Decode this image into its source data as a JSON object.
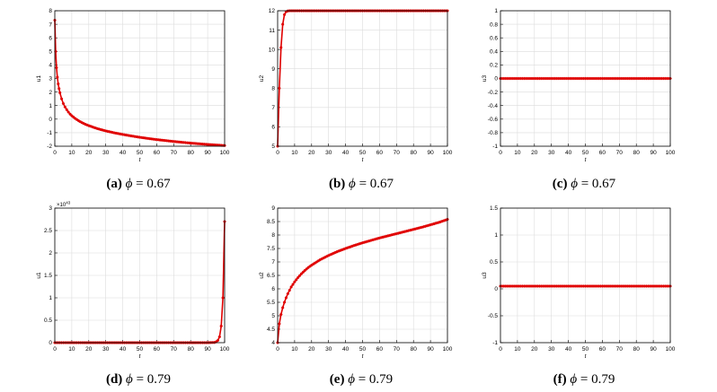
{
  "chart_data": [
    {
      "type": "line",
      "panel": "a",
      "caption": {
        "letter": "(a)",
        "symbol": "ϕ",
        "relation": "= 0.67"
      },
      "xlabel": "t",
      "ylabel": "u1",
      "xlim": [
        0,
        100
      ],
      "ylim": [
        -2,
        8
      ],
      "xticks": [
        0,
        10,
        20,
        30,
        40,
        50,
        60,
        70,
        80,
        90,
        100
      ],
      "yticks": [
        -2,
        -1,
        0,
        1,
        2,
        3,
        4,
        5,
        6,
        7,
        8
      ],
      "grid": true,
      "multiplier": "",
      "series": [
        {
          "color": "#e00000",
          "marker": "asterisk",
          "x": [
            0,
            0.5,
            1,
            1.5,
            2,
            2.5,
            3,
            4,
            5,
            6,
            7,
            8,
            9,
            10,
            12,
            14,
            16,
            18,
            20,
            25,
            30,
            35,
            40,
            45,
            50,
            55,
            60,
            65,
            70,
            75,
            80,
            85,
            90,
            95,
            100
          ],
          "y": [
            7.3,
            5.0,
            3.8,
            3.1,
            2.6,
            2.25,
            1.95,
            1.5,
            1.15,
            0.9,
            0.7,
            0.52,
            0.37,
            0.25,
            0.05,
            -0.12,
            -0.26,
            -0.38,
            -0.48,
            -0.7,
            -0.87,
            -1.01,
            -1.13,
            -1.24,
            -1.34,
            -1.43,
            -1.51,
            -1.58,
            -1.65,
            -1.71,
            -1.77,
            -1.82,
            -1.87,
            -1.91,
            -1.95
          ]
        }
      ]
    },
    {
      "type": "line",
      "panel": "b",
      "caption": {
        "letter": "(b)",
        "symbol": "ϕ",
        "relation": "= 0.67"
      },
      "xlabel": "t",
      "ylabel": "u2",
      "xlim": [
        0,
        100
      ],
      "ylim": [
        5,
        12
      ],
      "xticks": [
        0,
        10,
        20,
        30,
        40,
        50,
        60,
        70,
        80,
        90,
        100
      ],
      "yticks": [
        5,
        6,
        7,
        8,
        9,
        10,
        11,
        12
      ],
      "grid": true,
      "multiplier": "",
      "series": [
        {
          "color": "#e00000",
          "marker": "asterisk",
          "x": [
            0,
            1,
            2,
            3,
            4,
            5,
            6,
            7,
            8,
            9,
            10,
            15,
            20,
            25,
            30,
            35,
            40,
            45,
            50,
            55,
            60,
            65,
            70,
            75,
            80,
            85,
            90,
            95,
            100
          ],
          "y": [
            5.0,
            8.0,
            10.1,
            11.3,
            11.8,
            11.95,
            11.99,
            12,
            12,
            12,
            12,
            12,
            12,
            12,
            12,
            12,
            12,
            12,
            12,
            12,
            12,
            12,
            12,
            12,
            12,
            12,
            12,
            12,
            12
          ]
        }
      ]
    },
    {
      "type": "line",
      "panel": "c",
      "caption": {
        "letter": "(c)",
        "symbol": "ϕ",
        "relation": "= 0.67"
      },
      "xlabel": "t",
      "ylabel": "u3",
      "xlim": [
        0,
        100
      ],
      "ylim": [
        -1,
        1
      ],
      "xticks": [
        0,
        10,
        20,
        30,
        40,
        50,
        60,
        70,
        80,
        90,
        100
      ],
      "yticks": [
        -1,
        -0.8,
        -0.6,
        -0.4,
        -0.2,
        0,
        0.2,
        0.4,
        0.6,
        0.8,
        1
      ],
      "grid": true,
      "multiplier": "",
      "series": [
        {
          "color": "#e00000",
          "marker": "asterisk",
          "x": [
            0,
            100
          ],
          "y": [
            0,
            0
          ]
        }
      ]
    },
    {
      "type": "line",
      "panel": "d",
      "caption": {
        "letter": "(d)",
        "symbol": "ϕ",
        "relation": "= 0.79"
      },
      "xlabel": "t",
      "ylabel": "u1",
      "xlim": [
        0,
        100
      ],
      "ylim": [
        0,
        3
      ],
      "xticks": [
        0,
        10,
        20,
        30,
        40,
        50,
        60,
        70,
        80,
        90,
        100
      ],
      "yticks": [
        0,
        0.5,
        1,
        1.5,
        2,
        2.5,
        3
      ],
      "grid": true,
      "multiplier": "×10^43",
      "series": [
        {
          "color": "#e00000",
          "marker": "asterisk",
          "x": [
            0,
            10,
            20,
            30,
            40,
            50,
            60,
            70,
            80,
            90,
            94,
            95,
            96,
            97,
            98,
            99,
            100
          ],
          "y": [
            0,
            0,
            0,
            0,
            0,
            0,
            0,
            0,
            0,
            0,
            0.005,
            0.02,
            0.05,
            0.13,
            0.37,
            1.0,
            2.7
          ]
        }
      ]
    },
    {
      "type": "line",
      "panel": "e",
      "caption": {
        "letter": "(e)",
        "symbol": "ϕ",
        "relation": "= 0.79"
      },
      "xlabel": "t",
      "ylabel": "u2",
      "xlim": [
        0,
        100
      ],
      "ylim": [
        4,
        9
      ],
      "xticks": [
        0,
        10,
        20,
        30,
        40,
        50,
        60,
        70,
        80,
        90,
        100
      ],
      "yticks": [
        4,
        4.5,
        5,
        5.5,
        6,
        6.5,
        7,
        7.5,
        8,
        8.5,
        9
      ],
      "grid": true,
      "multiplier": "",
      "series": [
        {
          "color": "#e00000",
          "marker": "asterisk",
          "x": [
            0,
            1,
            2,
            3,
            4,
            5,
            6,
            8,
            10,
            12,
            14,
            16,
            18,
            20,
            25,
            30,
            35,
            40,
            45,
            50,
            55,
            60,
            65,
            70,
            75,
            80,
            85,
            90,
            95,
            100
          ],
          "y": [
            4.0,
            4.7,
            5.05,
            5.3,
            5.5,
            5.67,
            5.82,
            6.07,
            6.26,
            6.42,
            6.56,
            6.68,
            6.79,
            6.88,
            7.08,
            7.24,
            7.38,
            7.5,
            7.61,
            7.71,
            7.8,
            7.89,
            7.97,
            8.05,
            8.13,
            8.21,
            8.29,
            8.38,
            8.47,
            8.58
          ]
        }
      ]
    },
    {
      "type": "line",
      "panel": "f",
      "caption": {
        "letter": "(f)",
        "symbol": "ϕ",
        "relation": "= 0.79"
      },
      "xlabel": "t",
      "ylabel": "u3",
      "xlim": [
        0,
        100
      ],
      "ylim": [
        -1,
        1.5
      ],
      "xticks": [
        0,
        10,
        20,
        30,
        40,
        50,
        60,
        70,
        80,
        90,
        100
      ],
      "yticks": [
        -1,
        -0.5,
        0,
        0.5,
        1,
        1.5
      ],
      "grid": true,
      "multiplier": "",
      "series": [
        {
          "color": "#e00000",
          "marker": "asterisk",
          "x": [
            0,
            100
          ],
          "y": [
            0.05,
            0.05
          ]
        }
      ]
    }
  ]
}
